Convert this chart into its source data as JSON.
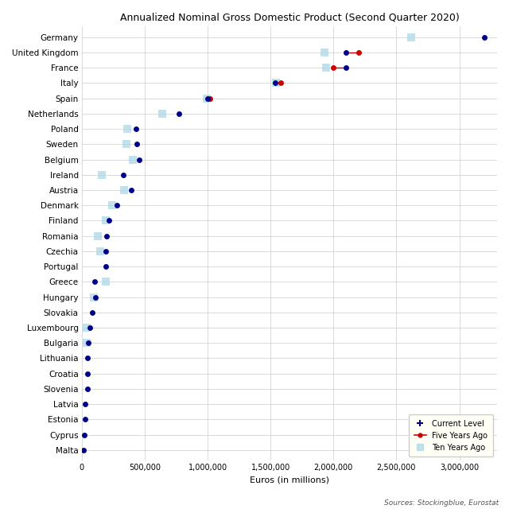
{
  "title": "Annualized Nominal Gross Domestic Product (Second Quarter 2020)",
  "xlabel": "Euros (in millions)",
  "source": "Sources: Stockingblue, Eurostat",
  "countries": [
    "Germany",
    "United Kingdom",
    "France",
    "Italy",
    "Spain",
    "Netherlands",
    "Poland",
    "Sweden",
    "Belgium",
    "Ireland",
    "Austria",
    "Denmark",
    "Finland",
    "Romania",
    "Czechia",
    "Portugal",
    "Greece",
    "Hungary",
    "Slovakia",
    "Luxembourg",
    "Bulgaria",
    "Lithuania",
    "Croatia",
    "Slovenia",
    "Latvia",
    "Estonia",
    "Cyprus",
    "Malta"
  ],
  "current": [
    3200000,
    2100000,
    2100000,
    1540000,
    1000000,
    770000,
    430000,
    440000,
    455000,
    330000,
    390000,
    280000,
    215000,
    195000,
    192000,
    190000,
    105000,
    110000,
    85000,
    67000,
    55000,
    45000,
    47000,
    43000,
    27000,
    25000,
    20000,
    12000
  ],
  "five_years": [
    null,
    2200000,
    2000000,
    1580000,
    1020000,
    null,
    null,
    null,
    null,
    null,
    null,
    null,
    null,
    null,
    null,
    null,
    null,
    null,
    null,
    null,
    null,
    null,
    null,
    null,
    null,
    null,
    null,
    null
  ],
  "ten_years": [
    2620000,
    1930000,
    1940000,
    1545000,
    995000,
    640000,
    360000,
    355000,
    405000,
    160000,
    335000,
    243000,
    190000,
    130000,
    148000,
    null,
    190000,
    93000,
    null,
    42000,
    42000,
    null,
    null,
    null,
    null,
    null,
    null,
    null
  ],
  "current_color": "#00008B",
  "five_years_color": "#CC0000",
  "ten_years_color": "#ADD8E6",
  "ten_years_color_alpha": 0.75,
  "bg_color": "#FFFFFF",
  "grid_color": "#CCCCCC",
  "xlim": [
    0,
    3300000
  ],
  "xticks": [
    0,
    500000,
    1000000,
    1500000,
    2000000,
    2500000,
    3000000
  ],
  "xtick_labels": [
    "0",
    "500,000",
    "1,000,000",
    "1,500,000",
    "2,000,000",
    "2,500,000",
    "3,000,000"
  ],
  "dot_size": 25,
  "square_size": 55,
  "legend_facecolor": "#FFFFF5"
}
